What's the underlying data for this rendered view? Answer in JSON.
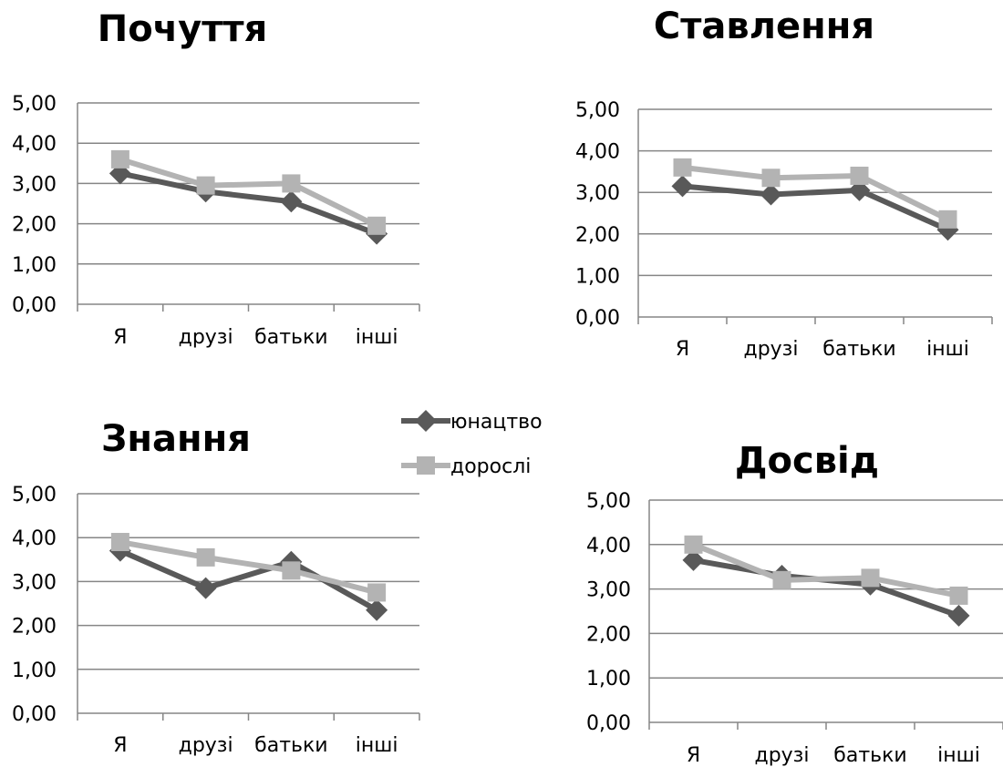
{
  "chart_data": [
    {
      "type": "line",
      "title": "Почуття",
      "categories": [
        "Я",
        "друзі",
        "батьки",
        "інші"
      ],
      "ylim": [
        0,
        5
      ],
      "yticks": [
        "0,00",
        "1,00",
        "2,00",
        "3,00",
        "4,00",
        "5,00"
      ],
      "grid": true,
      "series": [
        {
          "name": "юнацтво",
          "values": [
            3.25,
            2.8,
            2.55,
            1.75
          ]
        },
        {
          "name": "дорослі",
          "values": [
            3.6,
            2.95,
            3.0,
            1.95
          ]
        }
      ]
    },
    {
      "type": "line",
      "title": "Ставлення",
      "categories": [
        "Я",
        "друзі",
        "батьки",
        "інші"
      ],
      "ylim": [
        0,
        5
      ],
      "yticks": [
        "0,00",
        "1,00",
        "2,00",
        "3,00",
        "4,00",
        "5,00"
      ],
      "grid": true,
      "series": [
        {
          "name": "юнацтво",
          "values": [
            3.15,
            2.95,
            3.05,
            2.1
          ]
        },
        {
          "name": "дорослі",
          "values": [
            3.6,
            3.35,
            3.4,
            2.35
          ]
        }
      ]
    },
    {
      "type": "line",
      "title": "Знання",
      "categories": [
        "Я",
        "друзі",
        "батьки",
        "інші"
      ],
      "ylim": [
        0,
        5
      ],
      "yticks": [
        "0,00",
        "1,00",
        "2,00",
        "3,00",
        "4,00",
        "5,00"
      ],
      "grid": true,
      "series": [
        {
          "name": "юнацтво",
          "values": [
            3.7,
            2.85,
            3.45,
            2.35
          ]
        },
        {
          "name": "дорослі",
          "values": [
            3.9,
            3.55,
            3.25,
            2.75
          ]
        }
      ]
    },
    {
      "type": "line",
      "title": "Досвід",
      "categories": [
        "Я",
        "друзі",
        "батьки",
        "інші"
      ],
      "ylim": [
        0,
        5
      ],
      "yticks": [
        "0,00",
        "1,00",
        "2,00",
        "3,00",
        "4,00",
        "5,00"
      ],
      "grid": true,
      "series": [
        {
          "name": "юнацтво",
          "values": [
            3.65,
            3.3,
            3.1,
            2.4
          ]
        },
        {
          "name": "дорослі",
          "values": [
            4.0,
            3.2,
            3.25,
            2.85
          ]
        }
      ]
    }
  ],
  "legend": {
    "items": [
      {
        "label": "юнацтво",
        "marker": "diamond",
        "color": "#595959"
      },
      {
        "label": "дорослі",
        "marker": "square",
        "color": "#b3b3b3"
      }
    ]
  },
  "colors": {
    "series_dark": "#595959",
    "series_light": "#b3b3b3",
    "grid": "#868686"
  }
}
